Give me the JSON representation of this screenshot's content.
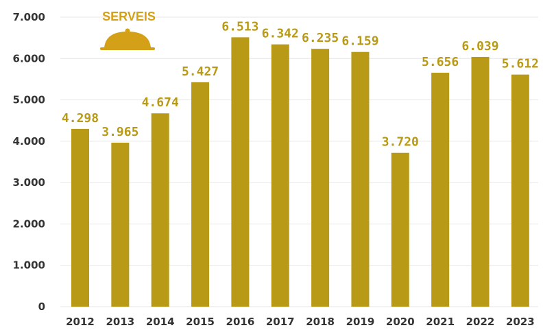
{
  "logo": {
    "label": "SERVEIS",
    "icon": "cloche-icon",
    "color": "#D4A017"
  },
  "colors": {
    "bar": "#B89A17",
    "data_label": "#B89A17",
    "grid": "#E6E6E6",
    "axis_text": "#333333"
  },
  "chart_data": {
    "type": "bar",
    "categories": [
      "2012",
      "2013",
      "2014",
      "2015",
      "2016",
      "2017",
      "2018",
      "2019",
      "2020",
      "2021",
      "2022",
      "2023"
    ],
    "values": [
      4298,
      3965,
      4674,
      5427,
      6513,
      6342,
      6235,
      6159,
      3720,
      5656,
      6039,
      5612
    ],
    "data_labels": [
      "4.298",
      "3.965",
      "4.674",
      "5.427",
      "6.513",
      "6.342",
      "6.235",
      "6.159",
      "3.720",
      "5.656",
      "6.039",
      "5.612"
    ],
    "y_ticks": [
      0,
      1000,
      2000,
      3000,
      4000,
      5000,
      6000,
      7000
    ],
    "y_tick_labels": [
      "0",
      "1.000",
      "2.000",
      "3.000",
      "4.000",
      "5.000",
      "6.000",
      "7.000"
    ],
    "ylim": [
      0,
      7000
    ],
    "grid": true,
    "legend": "none"
  }
}
